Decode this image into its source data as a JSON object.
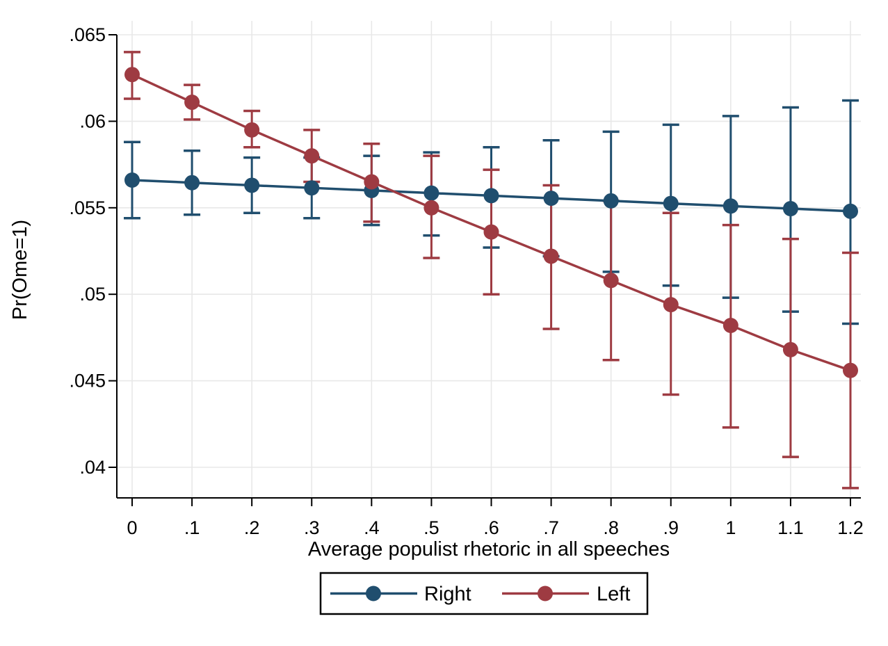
{
  "chart_data": {
    "type": "line",
    "title": "",
    "xlabel": "Average populist rhetoric in all speeches",
    "ylabel": "Pr(Ome=1)",
    "x": [
      0,
      0.1,
      0.2,
      0.3,
      0.4,
      0.5,
      0.6,
      0.7,
      0.8,
      0.9,
      1.0,
      1.1,
      1.2
    ],
    "x_tick_labels": [
      "0",
      ".1",
      ".2",
      ".3",
      ".4",
      ".5",
      ".6",
      ".7",
      ".8",
      ".9",
      "1",
      "1.1",
      "1.2"
    ],
    "y_ticks": [
      0.04,
      0.045,
      0.05,
      0.055,
      0.06,
      0.065
    ],
    "y_tick_labels": [
      ".04",
      ".045",
      ".05",
      ".055",
      ".06",
      ".065"
    ],
    "xlim": [
      -0.026,
      1.218
    ],
    "ylim": [
      0.0382,
      0.0658
    ],
    "grid": true,
    "legend_position": "bottom",
    "error_bars": true,
    "series": [
      {
        "name": "Right",
        "color": "#204e6e",
        "values": [
          0.0566,
          0.05645,
          0.0563,
          0.05615,
          0.056,
          0.05585,
          0.0557,
          0.05555,
          0.0554,
          0.05525,
          0.0551,
          0.05495,
          0.0548
        ],
        "ci_high": [
          0.0588,
          0.0583,
          0.0579,
          0.0579,
          0.058,
          0.0582,
          0.0585,
          0.0589,
          0.0594,
          0.0598,
          0.0603,
          0.0608,
          0.0612
        ],
        "ci_low": [
          0.0544,
          0.0546,
          0.0547,
          0.0544,
          0.054,
          0.0534,
          0.0527,
          0.0522,
          0.0513,
          0.0505,
          0.0498,
          0.049,
          0.0483
        ]
      },
      {
        "name": "Left",
        "color": "#9e3b42",
        "values": [
          0.0627,
          0.0611,
          0.0595,
          0.058,
          0.0565,
          0.055,
          0.0536,
          0.0522,
          0.0508,
          0.0494,
          0.0482,
          0.0468,
          0.0456
        ],
        "ci_high": [
          0.064,
          0.0621,
          0.0606,
          0.0595,
          0.0587,
          0.058,
          0.0572,
          0.0563,
          0.0554,
          0.0547,
          0.054,
          0.0532,
          0.0524
        ],
        "ci_low": [
          0.0613,
          0.0601,
          0.0585,
          0.0565,
          0.0542,
          0.0521,
          0.05,
          0.048,
          0.0462,
          0.0442,
          0.0423,
          0.0406,
          0.0388
        ]
      }
    ]
  },
  "colors": {
    "grid": "#e8e8e8",
    "axis": "#000000",
    "text": "#000000",
    "background": "#ffffff",
    "legend_border": "#000000"
  }
}
